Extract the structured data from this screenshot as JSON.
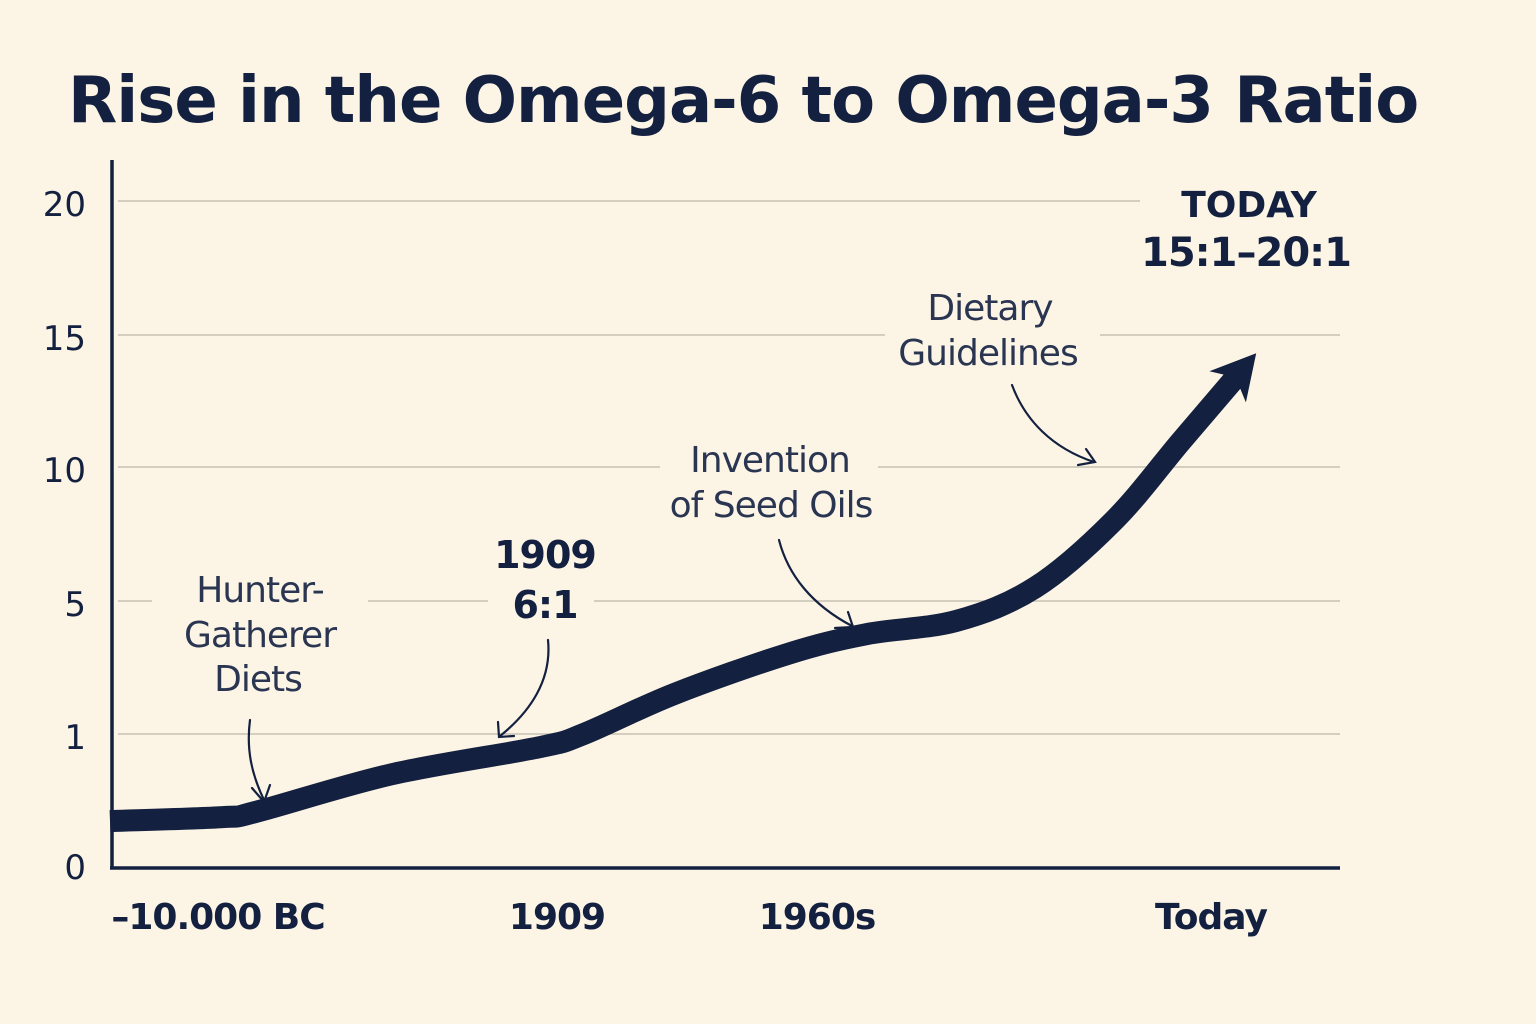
{
  "chart_data": {
    "type": "line",
    "title": "Rise in the Omega-6 to Omega-3 Ratio",
    "xlabel": "",
    "ylabel": "",
    "y_ticks": [
      "0",
      "1",
      "5",
      "10",
      "15",
      "20"
    ],
    "x_ticks": [
      "–10.000 BC",
      "1909",
      "1960s",
      "Today"
    ],
    "grid": true,
    "series": [
      {
        "name": "Omega-6 to Omega-3 ratio",
        "points": [
          {
            "x": 0.0,
            "level": 0.35
          },
          {
            "x": 0.1,
            "level": 0.38
          },
          {
            "x": 0.13,
            "level": 0.42
          },
          {
            "x": 0.25,
            "level": 0.7
          },
          {
            "x": 0.38,
            "level": 0.9
          },
          {
            "x": 0.42,
            "level": 1.0
          },
          {
            "x": 0.5,
            "level": 1.3
          },
          {
            "x": 0.6,
            "level": 1.6
          },
          {
            "x": 0.67,
            "level": 1.75
          },
          {
            "x": 0.75,
            "level": 1.85
          },
          {
            "x": 0.82,
            "level": 2.1
          },
          {
            "x": 0.89,
            "level": 2.6
          },
          {
            "x": 0.95,
            "level": 3.2
          },
          {
            "x": 1.0,
            "level": 3.7
          }
        ]
      }
    ],
    "annotations": [
      {
        "id": "hunter",
        "lines": [
          "Hunter-",
          "Gatherer",
          "Diets"
        ]
      },
      {
        "id": "y1909",
        "lines": [
          "1909",
          "6:1"
        ]
      },
      {
        "id": "seedoils",
        "lines": [
          "Invention",
          "of Seed Oils"
        ]
      },
      {
        "id": "guidelines",
        "lines": [
          "Dietary",
          "Guidelines"
        ]
      },
      {
        "id": "today",
        "label": "TODAY",
        "value": "15:1–20:1"
      }
    ]
  }
}
